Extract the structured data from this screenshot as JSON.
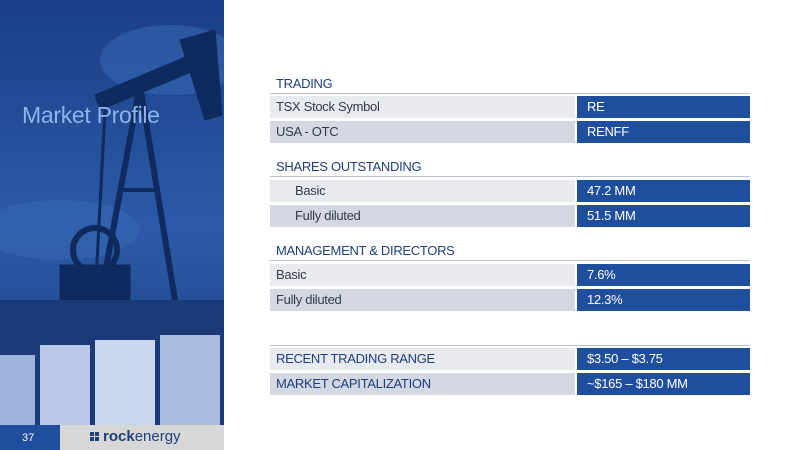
{
  "title": "Market Profile",
  "sections": [
    {
      "heading": "TRADING",
      "rows": [
        [
          "TSX Stock Symbol",
          "RE"
        ],
        [
          "USA - OTC",
          "RENFF"
        ]
      ]
    },
    {
      "heading": "SHARES OUTSTANDING",
      "rows": [
        [
          "Basic",
          "47.2 MM"
        ],
        [
          "Fully diluted",
          "51.5 MM"
        ]
      ]
    },
    {
      "heading": "MANAGEMENT & DIRECTORS",
      "rows": [
        [
          "Basic",
          "7.6%"
        ],
        [
          "Fully diluted",
          "12.3%"
        ]
      ]
    },
    {
      "rows": [
        [
          "RECENT TRADING RANGE",
          "$3.50 – $3.75"
        ],
        [
          "MARKET CAPITALIZATION",
          "~$165  – $180 MM"
        ]
      ]
    }
  ],
  "footer": {
    "page_number": "37",
    "logo_bold": "rock",
    "logo_rest": "energy"
  }
}
